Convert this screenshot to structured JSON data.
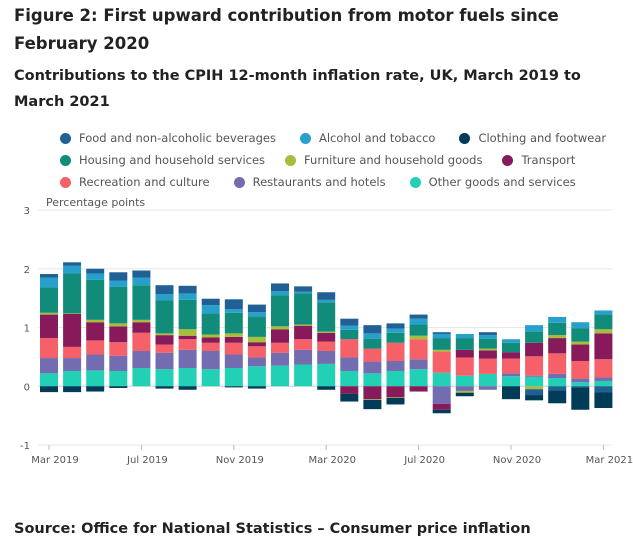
{
  "title": "Figure 2: First upward contribution from motor fuels since February 2020",
  "subtitle": "Contributions to the CPIH 12-month inflation rate, UK, March 2019 to March 2021",
  "source": "Source: Office for National Statistics – Consumer price inflation",
  "legend_rows": [
    [
      "food",
      "alcohol",
      "clothing"
    ],
    [
      "housing",
      "furniture",
      "transport"
    ],
    [
      "recreation",
      "restaurants",
      "other"
    ]
  ],
  "chart_data": {
    "type": "bar",
    "stacked": true,
    "title": "Contributions to the CPIH 12-month inflation rate, UK, March 2019 to March 2021",
    "ylabel": "Percentage points",
    "xlabel": "",
    "ylim": [
      -1,
      3
    ],
    "yticks": [
      3,
      2,
      1,
      0,
      -1
    ],
    "grid": true,
    "legend_placement": "top",
    "categories": [
      "Mar 2019",
      "Apr 2019",
      "May 2019",
      "Jun 2019",
      "Jul 2019",
      "Aug 2019",
      "Sep 2019",
      "Oct 2019",
      "Nov 2019",
      "Dec 2019",
      "Jan 2020",
      "Feb 2020",
      "Mar 2020",
      "Apr 2020",
      "May 2020",
      "Jun 2020",
      "Jul 2020",
      "Aug 2020",
      "Sep 2020",
      "Oct 2020",
      "Nov 2020",
      "Dec 2020",
      "Jan 2021",
      "Feb 2021",
      "Mar 2021"
    ],
    "xtick_labels": [
      "Mar 2019",
      "Jul 2019",
      "Nov 2019",
      "Mar 2020",
      "Jul 2020",
      "Nov 2020",
      "Mar 2021"
    ],
    "series": [
      {
        "key": "other",
        "name": "Other goods and services",
        "color": "#22d0b6",
        "values": [
          0.22,
          0.26,
          0.27,
          0.26,
          0.31,
          0.29,
          0.31,
          0.29,
          0.31,
          0.34,
          0.35,
          0.37,
          0.38,
          0.26,
          0.22,
          0.26,
          0.29,
          0.23,
          0.18,
          0.21,
          0.17,
          0.16,
          0.14,
          0.07,
          0.09
        ]
      },
      {
        "key": "restaurants",
        "name": "Restaurants and hotels",
        "color": "#746cb1",
        "values": [
          0.26,
          0.22,
          0.27,
          0.26,
          0.29,
          0.28,
          0.31,
          0.31,
          0.23,
          0.15,
          0.22,
          0.25,
          0.22,
          0.23,
          0.2,
          0.17,
          0.17,
          -0.3,
          -0.08,
          -0.06,
          0.05,
          0.02,
          0.07,
          0.06,
          0.06
        ]
      },
      {
        "key": "recreation",
        "name": "Recreation and culture",
        "color": "#f66068",
        "values": [
          0.34,
          0.19,
          0.24,
          0.23,
          0.31,
          0.14,
          0.18,
          0.14,
          0.2,
          0.19,
          0.17,
          0.18,
          0.16,
          0.31,
          0.22,
          0.31,
          0.34,
          0.36,
          0.31,
          0.26,
          0.25,
          0.33,
          0.35,
          0.3,
          0.31
        ]
      },
      {
        "key": "transport",
        "name": "Transport",
        "color": "#871a5b",
        "values": [
          0.4,
          0.56,
          0.31,
          0.27,
          0.18,
          0.16,
          0.06,
          0.09,
          0.1,
          0.07,
          0.23,
          0.23,
          0.15,
          -0.13,
          -0.22,
          -0.19,
          -0.09,
          -0.1,
          0.13,
          0.14,
          0.11,
          0.23,
          0.26,
          0.28,
          0.44
        ]
      },
      {
        "key": "furniture",
        "name": "Furniture and household goods",
        "color": "#a8bd3a",
        "values": [
          0.03,
          0.01,
          0.04,
          0.05,
          0.04,
          0.03,
          0.11,
          0.05,
          0.06,
          0.09,
          0.05,
          0.02,
          0.02,
          0,
          -0.01,
          -0.01,
          0.06,
          0.03,
          -0.03,
          0.03,
          0,
          -0.05,
          0.05,
          0.05,
          0.07
        ]
      },
      {
        "key": "housing",
        "name": "Housing and household services",
        "color": "#118c7b",
        "values": [
          0.43,
          0.68,
          0.68,
          0.62,
          0.59,
          0.56,
          0.5,
          0.36,
          0.35,
          0.35,
          0.53,
          0.53,
          0.5,
          0.16,
          0.17,
          0.17,
          0.19,
          0.2,
          0.2,
          0.17,
          0.16,
          0.19,
          0.21,
          0.23,
          0.25
        ]
      },
      {
        "key": "alcohol",
        "name": "Alcohol and tobacco",
        "color": "#27a0cc",
        "values": [
          0.17,
          0.13,
          0.11,
          0.11,
          0.13,
          0.11,
          0.11,
          0.14,
          0.06,
          0.07,
          0.07,
          0.03,
          0.04,
          0.07,
          0.09,
          0.07,
          0.1,
          0.07,
          0.07,
          0.06,
          0.06,
          0.11,
          0.1,
          0.1,
          0.07
        ]
      },
      {
        "key": "food",
        "name": "Food and non-alcoholic beverages",
        "color": "#206095",
        "values": [
          0.06,
          0.06,
          0.08,
          0.14,
          0.12,
          0.15,
          0.13,
          0.11,
          0.17,
          0.13,
          0.13,
          0.09,
          0.13,
          0.12,
          0.14,
          0.09,
          0.07,
          0.03,
          0,
          0.05,
          0,
          -0.1,
          -0.07,
          -0.02,
          -0.1
        ]
      },
      {
        "key": "clothing",
        "name": "Clothing and footwear",
        "color": "#003c57",
        "values": [
          -0.1,
          -0.1,
          -0.09,
          -0.03,
          0,
          -0.04,
          -0.06,
          0,
          -0.02,
          -0.04,
          0,
          0,
          -0.06,
          -0.13,
          -0.16,
          -0.11,
          0,
          -0.06,
          -0.06,
          0,
          -0.22,
          -0.09,
          -0.22,
          -0.38,
          -0.27
        ]
      }
    ]
  }
}
